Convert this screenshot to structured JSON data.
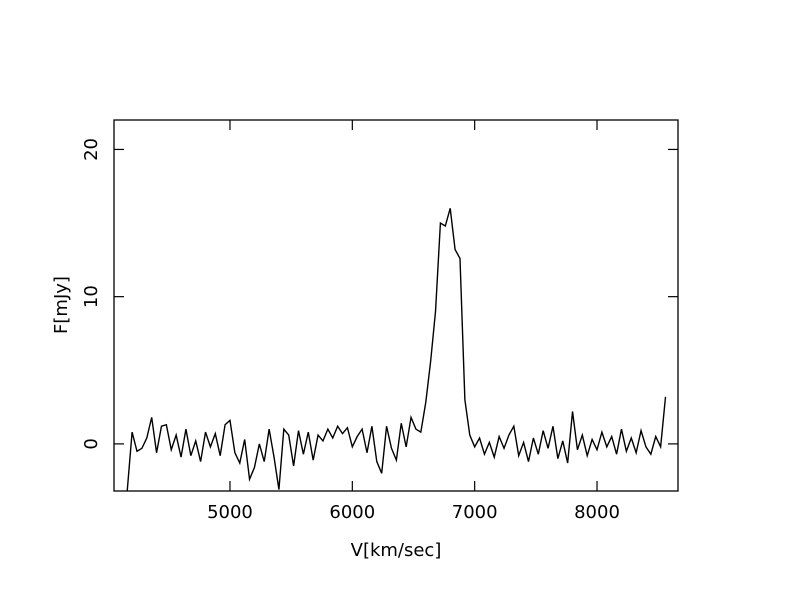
{
  "chart_data": {
    "type": "line",
    "x_label": "V[km/sec]",
    "y_label": "F[mJy]",
    "xlim": [
      4052,
      8662
    ],
    "ylim": [
      -3.2,
      22.0
    ],
    "xticks": [
      5000,
      6000,
      7000,
      8000
    ],
    "yticks": [
      0,
      10,
      20
    ],
    "x": [
      4160,
      4200,
      4240,
      4280,
      4320,
      4360,
      4400,
      4440,
      4480,
      4520,
      4560,
      4600,
      4640,
      4680,
      4720,
      4760,
      4800,
      4840,
      4880,
      4920,
      4960,
      5000,
      5040,
      5080,
      5120,
      5160,
      5200,
      5240,
      5280,
      5320,
      5360,
      5400,
      5440,
      5480,
      5520,
      5560,
      5600,
      5640,
      5680,
      5720,
      5760,
      5800,
      5840,
      5880,
      5920,
      5960,
      6000,
      6040,
      6080,
      6120,
      6160,
      6200,
      6240,
      6280,
      6320,
      6360,
      6400,
      6440,
      6480,
      6520,
      6560,
      6600,
      6640,
      6680,
      6720,
      6760,
      6800,
      6840,
      6880,
      6920,
      6960,
      7000,
      7040,
      7080,
      7120,
      7160,
      7200,
      7240,
      7280,
      7320,
      7360,
      7400,
      7440,
      7480,
      7520,
      7560,
      7600,
      7640,
      7680,
      7720,
      7760,
      7800,
      7840,
      7880,
      7920,
      7960,
      8000,
      8040,
      8080,
      8120,
      8160,
      8200,
      8240,
      8280,
      8320,
      8360,
      8400,
      8440,
      8480,
      8520,
      8560
    ],
    "series": [
      {
        "color": "#000000",
        "values": [
          -3.2,
          0.8,
          -0.5,
          -0.3,
          0.4,
          1.8,
          -0.6,
          1.2,
          1.3,
          -0.4,
          0.6,
          -0.9,
          1.0,
          -0.8,
          0.2,
          -1.2,
          0.8,
          -0.2,
          0.7,
          -0.8,
          1.3,
          1.6,
          -0.6,
          -1.3,
          0.3,
          -2.4,
          -1.6,
          0.0,
          -1.2,
          1.0,
          -0.9,
          -3.1,
          1.0,
          0.6,
          -1.5,
          0.9,
          -0.7,
          0.8,
          -1.1,
          0.6,
          0.2,
          1.0,
          0.4,
          1.2,
          0.7,
          1.1,
          -0.2,
          0.5,
          1.0,
          -0.6,
          1.2,
          -1.2,
          -2.0,
          1.2,
          -0.3,
          -1.1,
          1.4,
          -0.2,
          1.8,
          1.0,
          0.8,
          2.8,
          5.6,
          9.0,
          15.0,
          14.8,
          16.0,
          13.2,
          12.6,
          3.0,
          0.6,
          -0.2,
          0.4,
          -0.7,
          0.1,
          -0.9,
          0.5,
          -0.3,
          0.6,
          1.2,
          -0.8,
          0.1,
          -1.2,
          0.4,
          -0.7,
          0.9,
          -0.3,
          1.2,
          -1.0,
          0.2,
          -1.3,
          2.2,
          -0.4,
          0.6,
          -0.8,
          0.3,
          -0.4,
          0.8,
          -0.2,
          0.5,
          -0.7,
          1.0,
          -0.5,
          0.4,
          -0.6,
          0.9,
          -0.2,
          -0.7,
          0.5,
          -0.2,
          3.2
        ]
      }
    ]
  }
}
